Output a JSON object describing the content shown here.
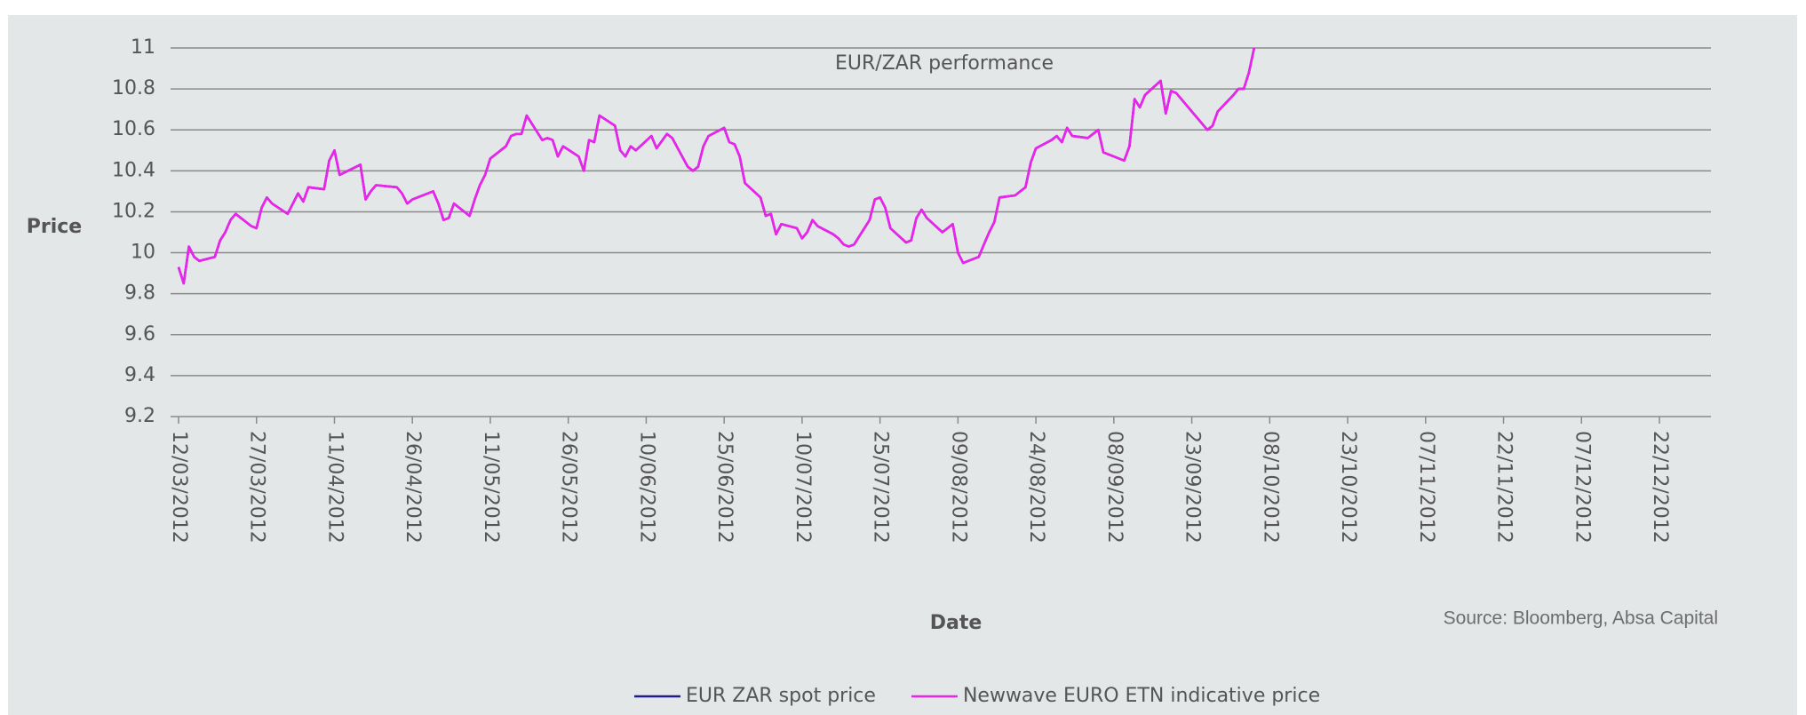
{
  "chart_data": {
    "type": "line",
    "title": "EUR/ZAR performance",
    "x_label": "Date",
    "y_label": "Price",
    "source": "Source: Bloomberg, Absa Capital",
    "legend": "bottom",
    "grid": true,
    "x": [
      "12/03/2012",
      "13/03/2012",
      "14/03/2012",
      "15/03/2012",
      "16/03/2012",
      "19/03/2012",
      "20/03/2012",
      "21/03/2012",
      "22/03/2012",
      "23/03/2012",
      "26/03/2012",
      "27/03/2012",
      "28/03/2012",
      "29/03/2012",
      "30/03/2012",
      "02/04/2012",
      "03/04/2012",
      "04/04/2012",
      "05/04/2012",
      "06/04/2012",
      "09/04/2012",
      "10/04/2012",
      "11/04/2012",
      "12/04/2012",
      "16/04/2012",
      "17/04/2012",
      "18/04/2012",
      "19/04/2012",
      "23/04/2012",
      "24/04/2012",
      "25/04/2012",
      "26/04/2012",
      "30/04/2012",
      "01/05/2012",
      "02/05/2012",
      "03/05/2012",
      "04/05/2012",
      "07/05/2012",
      "08/05/2012",
      "09/05/2012",
      "10/05/2012",
      "11/05/2012",
      "14/05/2012",
      "15/05/2012",
      "16/05/2012",
      "17/05/2012",
      "18/05/2012",
      "21/05/2012",
      "22/05/2012",
      "23/05/2012",
      "24/05/2012",
      "25/05/2012",
      "28/05/2012",
      "29/05/2012",
      "30/05/2012",
      "31/05/2012",
      "01/06/2012",
      "04/06/2012",
      "05/06/2012",
      "06/06/2012",
      "07/06/2012",
      "08/06/2012",
      "11/06/2012",
      "12/06/2012",
      "14/06/2012",
      "15/06/2012",
      "18/06/2012",
      "19/06/2012",
      "20/06/2012",
      "21/06/2012",
      "22/06/2012",
      "25/06/2012",
      "26/06/2012",
      "27/06/2012",
      "28/06/2012",
      "29/06/2012",
      "02/07/2012",
      "03/07/2012",
      "04/07/2012",
      "05/07/2012",
      "06/07/2012",
      "09/07/2012",
      "10/07/2012",
      "11/07/2012",
      "12/07/2012",
      "13/07/2012",
      "16/07/2012",
      "17/07/2012",
      "18/07/2012",
      "19/07/2012",
      "20/07/2012",
      "23/07/2012",
      "24/07/2012",
      "25/07/2012",
      "26/07/2012",
      "27/07/2012",
      "30/07/2012",
      "31/07/2012",
      "01/08/2012",
      "02/08/2012",
      "03/08/2012",
      "06/08/2012",
      "07/08/2012",
      "08/08/2012",
      "09/08/2012",
      "10/08/2012",
      "13/08/2012",
      "14/08/2012",
      "15/08/2012",
      "16/08/2012",
      "17/08/2012",
      "20/08/2012",
      "21/08/2012",
      "22/08/2012",
      "23/08/2012",
      "24/08/2012",
      "27/08/2012",
      "28/08/2012",
      "29/08/2012",
      "30/08/2012",
      "31/08/2012",
      "03/09/2012",
      "04/09/2012",
      "05/09/2012",
      "06/09/2012",
      "10/09/2012",
      "11/09/2012",
      "12/09/2012",
      "13/09/2012",
      "14/09/2012",
      "17/09/2012",
      "18/09/2012",
      "19/09/2012",
      "20/09/2012",
      "24/09/2012",
      "26/09/2012",
      "27/09/2012",
      "28/09/2012",
      "01/10/2012",
      "02/10/2012",
      "03/10/2012",
      "04/10/2012",
      "05/10/2012"
    ],
    "series": [
      {
        "name": "EUR ZAR spot price",
        "color": "#1c1c8e",
        "values": [
          9.93,
          9.85,
          10.03,
          9.98,
          9.96,
          9.98,
          10.06,
          10.1,
          10.16,
          10.19,
          10.13,
          10.12,
          10.22,
          10.27,
          10.24,
          10.19,
          10.24,
          10.29,
          10.25,
          10.32,
          10.31,
          10.45,
          10.5,
          10.38,
          10.43,
          10.26,
          10.3,
          10.33,
          10.32,
          10.29,
          10.24,
          10.26,
          10.3,
          10.24,
          10.16,
          10.17,
          10.24,
          10.18,
          10.26,
          10.33,
          10.38,
          10.46,
          10.52,
          10.57,
          10.58,
          10.58,
          10.67,
          10.55,
          10.56,
          10.55,
          10.47,
          10.52,
          10.47,
          10.4,
          10.55,
          10.54,
          10.67,
          10.62,
          10.5,
          10.47,
          10.52,
          10.5,
          10.57,
          10.51,
          10.58,
          10.56,
          10.42,
          10.4,
          10.42,
          10.52,
          10.57,
          10.61,
          10.54,
          10.53,
          10.47,
          10.34,
          10.27,
          10.18,
          10.19,
          10.09,
          10.14,
          10.12,
          10.07,
          10.1,
          10.16,
          10.13,
          10.09,
          10.07,
          10.04,
          10.03,
          10.04,
          10.16,
          10.26,
          10.27,
          10.22,
          10.12,
          10.05,
          10.06,
          10.17,
          10.21,
          10.17,
          10.1,
          10.12,
          10.14,
          10.0,
          9.95,
          9.98,
          10.04,
          10.1,
          10.15,
          10.27,
          10.28,
          10.3,
          10.32,
          10.44,
          10.51,
          10.55,
          10.57,
          10.54,
          10.61,
          10.57,
          10.56,
          10.58,
          10.6,
          10.49,
          10.45,
          10.52,
          10.75,
          10.71,
          10.77,
          10.84,
          10.68,
          10.79,
          10.78,
          10.66,
          10.6,
          10.62,
          10.69,
          10.77,
          10.8,
          10.8,
          10.88,
          11.0
        ]
      },
      {
        "name": "Newwave EURO ETN indicative price",
        "color": "#ee22ee",
        "values": [
          9.93,
          9.85,
          10.03,
          9.98,
          9.96,
          9.98,
          10.06,
          10.1,
          10.16,
          10.19,
          10.13,
          10.12,
          10.22,
          10.27,
          10.24,
          10.19,
          10.24,
          10.29,
          10.25,
          10.32,
          10.31,
          10.45,
          10.5,
          10.38,
          10.43,
          10.26,
          10.3,
          10.33,
          10.32,
          10.29,
          10.24,
          10.26,
          10.3,
          10.24,
          10.16,
          10.17,
          10.24,
          10.18,
          10.26,
          10.33,
          10.38,
          10.46,
          10.52,
          10.57,
          10.58,
          10.58,
          10.67,
          10.55,
          10.56,
          10.55,
          10.47,
          10.52,
          10.47,
          10.4,
          10.55,
          10.54,
          10.67,
          10.62,
          10.5,
          10.47,
          10.52,
          10.5,
          10.57,
          10.51,
          10.58,
          10.56,
          10.42,
          10.4,
          10.42,
          10.52,
          10.57,
          10.61,
          10.54,
          10.53,
          10.47,
          10.34,
          10.27,
          10.18,
          10.19,
          10.09,
          10.14,
          10.12,
          10.07,
          10.1,
          10.16,
          10.13,
          10.09,
          10.07,
          10.04,
          10.03,
          10.04,
          10.16,
          10.26,
          10.27,
          10.22,
          10.12,
          10.05,
          10.06,
          10.17,
          10.21,
          10.17,
          10.1,
          10.12,
          10.14,
          10.0,
          9.95,
          9.98,
          10.04,
          10.1,
          10.15,
          10.27,
          10.28,
          10.3,
          10.32,
          10.44,
          10.51,
          10.55,
          10.57,
          10.54,
          10.61,
          10.57,
          10.56,
          10.58,
          10.6,
          10.49,
          10.45,
          10.52,
          10.75,
          10.71,
          10.77,
          10.84,
          10.68,
          10.79,
          10.78,
          10.66,
          10.6,
          10.62,
          10.69,
          10.77,
          10.8,
          10.8,
          10.88,
          11.0
        ]
      }
    ],
    "xlim": [
      "12/03/2012",
      "22/12/2012"
    ],
    "xticks": [
      "12/03/2012",
      "27/03/2012",
      "11/04/2012",
      "26/04/2012",
      "11/05/2012",
      "26/05/2012",
      "10/06/2012",
      "25/06/2012",
      "10/07/2012",
      "25/07/2012",
      "09/08/2012",
      "24/08/2012",
      "08/09/2012",
      "23/09/2012",
      "08/10/2012",
      "23/10/2012",
      "07/11/2012",
      "22/11/2012",
      "07/12/2012",
      "22/12/2012"
    ],
    "ylim": [
      9.2,
      11
    ],
    "yticks": [
      9.2,
      9.4,
      9.6,
      9.8,
      10,
      10.2,
      10.4,
      10.6,
      10.8,
      11
    ]
  }
}
